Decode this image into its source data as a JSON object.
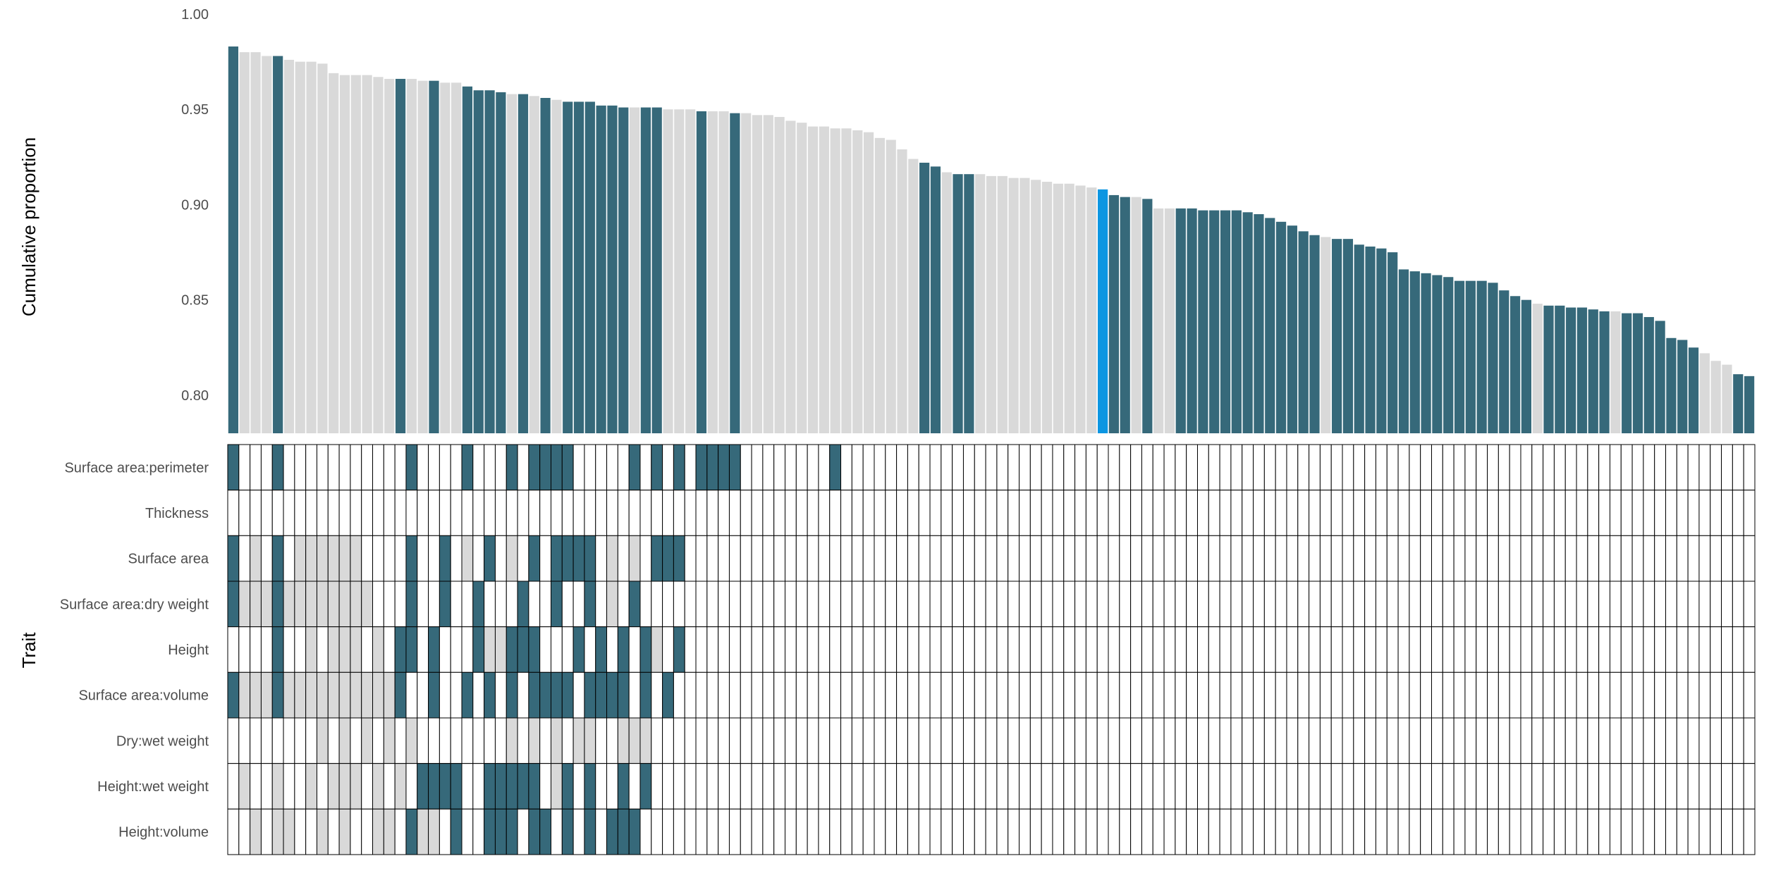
{
  "chart_data": {
    "type": "bar",
    "ylabel_top": "Cumulative proportion",
    "ylabel_bottom": "Trait",
    "ylim": [
      0.78,
      1.0
    ],
    "yticks": [
      "1.00",
      "0.95",
      "0.90",
      "0.85",
      "0.80"
    ],
    "colors": {
      "dark": "#36697A",
      "light": "#D9D9D9",
      "highlight": "#0C96E2",
      "empty": "#FFFFFF",
      "grid_line": "#000000"
    },
    "traits": [
      "Surface area:perimeter",
      "Thickness",
      "Surface area",
      "Surface area:dry weight",
      "Height",
      "Surface area:volume",
      "Dry:wet weight",
      "Height:wet weight",
      "Height:volume"
    ],
    "bar_values": [
      0.983,
      0.98,
      0.98,
      0.978,
      0.978,
      0.976,
      0.975,
      0.975,
      0.974,
      0.969,
      0.968,
      0.968,
      0.968,
      0.967,
      0.966,
      0.966,
      0.966,
      0.965,
      0.965,
      0.964,
      0.964,
      0.962,
      0.96,
      0.96,
      0.959,
      0.958,
      0.958,
      0.957,
      0.956,
      0.955,
      0.954,
      0.954,
      0.954,
      0.952,
      0.952,
      0.951,
      0.951,
      0.951,
      0.951,
      0.95,
      0.95,
      0.95,
      0.949,
      0.949,
      0.949,
      0.948,
      0.948,
      0.947,
      0.947,
      0.946,
      0.944,
      0.943,
      0.941,
      0.941,
      0.94,
      0.94,
      0.939,
      0.938,
      0.935,
      0.934,
      0.929,
      0.924,
      0.922,
      0.92,
      0.917,
      0.916,
      0.916,
      0.916,
      0.915,
      0.915,
      0.914,
      0.914,
      0.913,
      0.912,
      0.911,
      0.911,
      0.91,
      0.909,
      0.908,
      0.905,
      0.904,
      0.904,
      0.903,
      0.898,
      0.898,
      0.898,
      0.898,
      0.897,
      0.897,
      0.897,
      0.897,
      0.896,
      0.895,
      0.893,
      0.891,
      0.889,
      0.886,
      0.884,
      0.883,
      0.882,
      0.882,
      0.879,
      0.878,
      0.877,
      0.875,
      0.866,
      0.865,
      0.864,
      0.863,
      0.862,
      0.86,
      0.86,
      0.86,
      0.859,
      0.855,
      0.852,
      0.85,
      0.848,
      0.847,
      0.847,
      0.846,
      0.846,
      0.845,
      0.844,
      0.844,
      0.843,
      0.843,
      0.841,
      0.839,
      0.83,
      0.829,
      0.825,
      0.822,
      0.818,
      0.816,
      0.811,
      0.81
    ],
    "bar_colors": "DLLLDLLLLLLLLLLDLLDLLDDDDLDLDLDDDDDDLDDLLLDLLDLLLLLLLLLLLLLLLLDDLDDLLLLLLLLLLLHDDLDLLDDDDDDDDDDDDDLDDDDDDDDDDDDDDDDDDLDDDDDDLDDDDDDDLLLDDDDDDDD",
    "matrix": [
      "D000D00000000000D0000D000D0DDDD00000D0D0D0DDDD00000000D00000000000000000000000000000000000000000000000000000000000000000000000",
      "0000000000000000000000000000000000000000000000000000000000000000000000000000000000000000000000000000000000000000000000000000",
      "D0L0D0LLLLLL0000D00D0L0D0L0D0DDDD0L0L0DDD0000000000000000000000000000000000000000000000000000000000000000000000000000000000000",
      "DLLLDLLLLLLLL000D00D00D000D00D00D0L0D0000000000000000000000000000000000000000000000000000000000000000000000000000000000000000",
      "0000D00L0LLL0L0DD0D000DLLDDD000D0D0D0DL0D000000000000000000000000000000000000000000000000000000000000000000000000000000000000",
      "DLLLDLLLLLLLLLLD00D00D0D0D0DDDD0DDDD0D0D000000000000000000000000000000000000000000000000000000000000000000000000000000000000",
      "00000000L0L0L0L0L00000000L0L0L0LL00LLL00000000000000000000000000000000000000000000000000000000000000000000000000000000000000",
      "0L00L00L0LLL0L0L0DDDD00DDDDD0LD0D00D0D00000000000000000000000000000000000000000000000000000000000000000000000000000000000000",
      "00L0LL00L0L00LL0DLL0D00DDD0DD0D0D0DDD0000000000000000000000000000000000000000000000000000000000000000000000000000000000000000"
    ]
  }
}
